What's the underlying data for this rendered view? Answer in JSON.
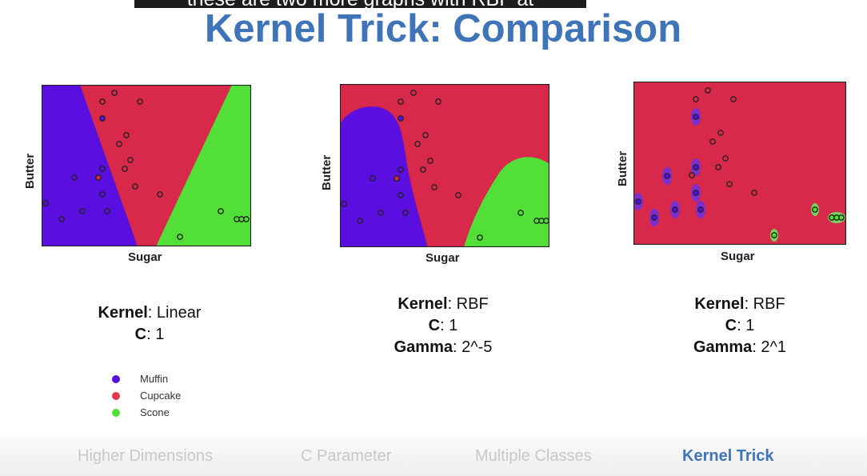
{
  "caption": "these are two more graphs with RBF at",
  "title": "Kernel Trick: Comparison",
  "colors": {
    "muffin": "#5a0ee0",
    "cupcake": "#d8294a",
    "scone": "#52e038",
    "title": "#3f74b8"
  },
  "plots": [
    {
      "xlabel": "Sugar",
      "ylabel": "Butter",
      "kernel_label": "Kernel",
      "kernel": ": Linear",
      "c_label": "C",
      "c": ": 1"
    },
    {
      "xlabel": "Sugar",
      "ylabel": "Butter",
      "kernel_label": "Kernel",
      "kernel": ": RBF",
      "c_label": "C",
      "c": ": 1",
      "gamma_label": "Gamma",
      "gamma": ": 2^-5"
    },
    {
      "xlabel": "Sugar",
      "ylabel": "Butter",
      "kernel_label": "Kernel",
      "kernel": ": RBF",
      "c_label": "C",
      "c": ": 1",
      "gamma_label": "Gamma",
      "gamma": ": 2^1"
    }
  ],
  "legend": [
    {
      "label": "Muffin",
      "color": "#5a0ee0"
    },
    {
      "label": "Cupcake",
      "color": "#e0394f"
    },
    {
      "label": "Scone",
      "color": "#52e038"
    }
  ],
  "nav": [
    "Higher Dimensions",
    "C Parameter",
    "Multiple Classes",
    "Kernel Trick"
  ],
  "nav_active": "Kernel Trick"
}
